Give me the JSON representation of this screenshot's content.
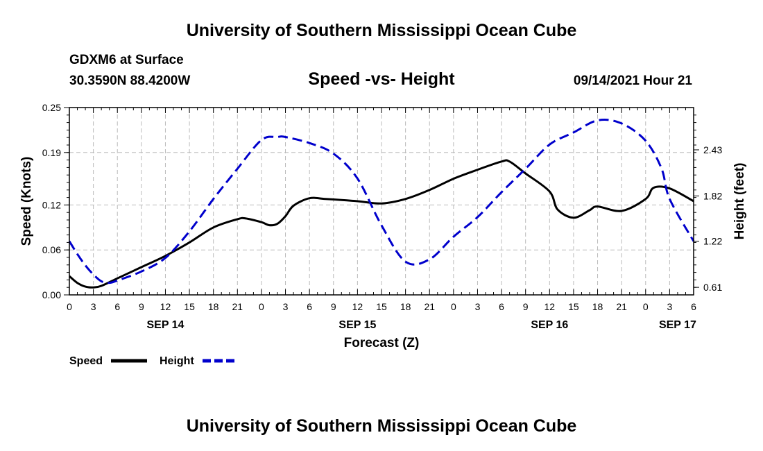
{
  "header": {
    "title_top": "University of Southern Mississippi Ocean Cube",
    "title_bottom": "University of Southern Mississippi Ocean Cube",
    "station": "GDXM6 at Surface",
    "coords": "30.3590N  88.4200W",
    "datetime": "09/14/2021 Hour 21"
  },
  "colors": {
    "speed": "#000000",
    "height": "#0000cc",
    "grid": "#bbbbbb"
  },
  "chart_data": {
    "type": "line",
    "title": "Speed -vs- Height",
    "xlabel": "Forecast (Z)",
    "ylabel": "Speed (Knots)",
    "y2label": "Height (feet)",
    "x_unit": "hours since SEP 14 00Z",
    "xlim": [
      0,
      78
    ],
    "x_ticks": [
      0,
      3,
      6,
      9,
      12,
      15,
      18,
      21,
      24,
      27,
      30,
      33,
      36,
      39,
      42,
      45,
      48,
      51,
      54,
      57,
      60,
      63,
      66,
      69,
      72,
      75,
      78
    ],
    "x_tick_labels": [
      "0",
      "3",
      "6",
      "9",
      "12",
      "15",
      "18",
      "21",
      "0",
      "3",
      "6",
      "9",
      "12",
      "15",
      "18",
      "21",
      "0",
      "3",
      "6",
      "9",
      "12",
      "15",
      "18",
      "21",
      "0",
      "3",
      "6"
    ],
    "date_labels": [
      {
        "hour": 12,
        "label": "SEP 14"
      },
      {
        "hour": 36,
        "label": "SEP 15"
      },
      {
        "hour": 60,
        "label": "SEP 16"
      },
      {
        "hour": 76,
        "label": "SEP 17"
      }
    ],
    "ylim": [
      0,
      0.25
    ],
    "y_ticks": [
      0.0,
      0.06,
      0.12,
      0.19,
      0.25
    ],
    "y_tick_labels": [
      "0.00",
      "0.06",
      "0.12",
      "0.19",
      "0.25"
    ],
    "y2lim": [
      0.51,
      2.99
    ],
    "y2_ticks": [
      0.61,
      1.22,
      1.82,
      2.43
    ],
    "y2_tick_labels": [
      "0.61",
      "1.22",
      "1.82",
      "2.43"
    ],
    "series": [
      {
        "name": "Speed",
        "axis": "left",
        "style": "solid",
        "x": [
          0,
          1,
          2,
          3,
          4,
          6,
          9,
          12,
          15,
          18,
          21,
          22,
          24,
          25,
          26,
          27,
          28,
          30,
          32,
          36,
          39,
          42,
          45,
          48,
          51,
          54,
          55,
          57,
          60,
          61,
          63,
          65,
          66,
          69,
          72,
          73,
          75,
          78
        ],
        "y": [
          0.025,
          0.016,
          0.011,
          0.01,
          0.012,
          0.022,
          0.037,
          0.052,
          0.07,
          0.09,
          0.101,
          0.102,
          0.097,
          0.093,
          0.095,
          0.105,
          0.119,
          0.129,
          0.128,
          0.125,
          0.122,
          0.128,
          0.14,
          0.155,
          0.167,
          0.178,
          0.178,
          0.162,
          0.138,
          0.114,
          0.103,
          0.113,
          0.118,
          0.112,
          0.128,
          0.143,
          0.142,
          0.125
        ]
      },
      {
        "name": "Height",
        "axis": "right",
        "style": "dashed",
        "x": [
          0,
          1,
          2,
          3,
          4,
          5,
          6,
          9,
          12,
          15,
          18,
          21,
          24,
          26,
          27,
          30,
          33,
          36,
          39,
          42,
          45,
          48,
          51,
          54,
          57,
          60,
          63,
          66,
          69,
          72,
          74,
          75,
          78
        ],
        "y": [
          1.22,
          1.05,
          0.9,
          0.78,
          0.69,
          0.67,
          0.7,
          0.82,
          1.0,
          1.35,
          1.78,
          2.18,
          2.56,
          2.6,
          2.6,
          2.52,
          2.38,
          2.05,
          1.43,
          0.95,
          0.98,
          1.28,
          1.54,
          1.87,
          2.18,
          2.5,
          2.66,
          2.82,
          2.78,
          2.55,
          2.18,
          1.78,
          1.22
        ]
      }
    ],
    "legend": [
      "Speed",
      "Height"
    ],
    "legend_position": "bottom-left"
  }
}
